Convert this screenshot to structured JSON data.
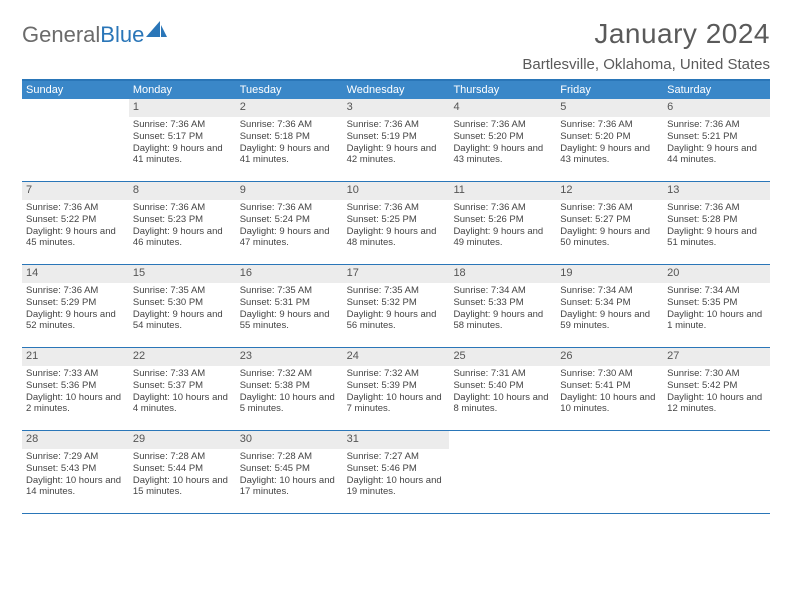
{
  "logo": {
    "part1": "General",
    "part2": "Blue"
  },
  "title": "January 2024",
  "location": "Bartlesville, Oklahoma, United States",
  "colors": {
    "header_bg": "#3a87c8",
    "border": "#2a76b8",
    "daynum_bg": "#ececec",
    "text": "#444444",
    "title_text": "#5a5a5a"
  },
  "day_names": [
    "Sunday",
    "Monday",
    "Tuesday",
    "Wednesday",
    "Thursday",
    "Friday",
    "Saturday"
  ],
  "weeks": [
    [
      {
        "day": "",
        "sunrise": "",
        "sunset": "",
        "daylight": ""
      },
      {
        "day": "1",
        "sunrise": "Sunrise: 7:36 AM",
        "sunset": "Sunset: 5:17 PM",
        "daylight": "Daylight: 9 hours and 41 minutes."
      },
      {
        "day": "2",
        "sunrise": "Sunrise: 7:36 AM",
        "sunset": "Sunset: 5:18 PM",
        "daylight": "Daylight: 9 hours and 41 minutes."
      },
      {
        "day": "3",
        "sunrise": "Sunrise: 7:36 AM",
        "sunset": "Sunset: 5:19 PM",
        "daylight": "Daylight: 9 hours and 42 minutes."
      },
      {
        "day": "4",
        "sunrise": "Sunrise: 7:36 AM",
        "sunset": "Sunset: 5:20 PM",
        "daylight": "Daylight: 9 hours and 43 minutes."
      },
      {
        "day": "5",
        "sunrise": "Sunrise: 7:36 AM",
        "sunset": "Sunset: 5:20 PM",
        "daylight": "Daylight: 9 hours and 43 minutes."
      },
      {
        "day": "6",
        "sunrise": "Sunrise: 7:36 AM",
        "sunset": "Sunset: 5:21 PM",
        "daylight": "Daylight: 9 hours and 44 minutes."
      }
    ],
    [
      {
        "day": "7",
        "sunrise": "Sunrise: 7:36 AM",
        "sunset": "Sunset: 5:22 PM",
        "daylight": "Daylight: 9 hours and 45 minutes."
      },
      {
        "day": "8",
        "sunrise": "Sunrise: 7:36 AM",
        "sunset": "Sunset: 5:23 PM",
        "daylight": "Daylight: 9 hours and 46 minutes."
      },
      {
        "day": "9",
        "sunrise": "Sunrise: 7:36 AM",
        "sunset": "Sunset: 5:24 PM",
        "daylight": "Daylight: 9 hours and 47 minutes."
      },
      {
        "day": "10",
        "sunrise": "Sunrise: 7:36 AM",
        "sunset": "Sunset: 5:25 PM",
        "daylight": "Daylight: 9 hours and 48 minutes."
      },
      {
        "day": "11",
        "sunrise": "Sunrise: 7:36 AM",
        "sunset": "Sunset: 5:26 PM",
        "daylight": "Daylight: 9 hours and 49 minutes."
      },
      {
        "day": "12",
        "sunrise": "Sunrise: 7:36 AM",
        "sunset": "Sunset: 5:27 PM",
        "daylight": "Daylight: 9 hours and 50 minutes."
      },
      {
        "day": "13",
        "sunrise": "Sunrise: 7:36 AM",
        "sunset": "Sunset: 5:28 PM",
        "daylight": "Daylight: 9 hours and 51 minutes."
      }
    ],
    [
      {
        "day": "14",
        "sunrise": "Sunrise: 7:36 AM",
        "sunset": "Sunset: 5:29 PM",
        "daylight": "Daylight: 9 hours and 52 minutes."
      },
      {
        "day": "15",
        "sunrise": "Sunrise: 7:35 AM",
        "sunset": "Sunset: 5:30 PM",
        "daylight": "Daylight: 9 hours and 54 minutes."
      },
      {
        "day": "16",
        "sunrise": "Sunrise: 7:35 AM",
        "sunset": "Sunset: 5:31 PM",
        "daylight": "Daylight: 9 hours and 55 minutes."
      },
      {
        "day": "17",
        "sunrise": "Sunrise: 7:35 AM",
        "sunset": "Sunset: 5:32 PM",
        "daylight": "Daylight: 9 hours and 56 minutes."
      },
      {
        "day": "18",
        "sunrise": "Sunrise: 7:34 AM",
        "sunset": "Sunset: 5:33 PM",
        "daylight": "Daylight: 9 hours and 58 minutes."
      },
      {
        "day": "19",
        "sunrise": "Sunrise: 7:34 AM",
        "sunset": "Sunset: 5:34 PM",
        "daylight": "Daylight: 9 hours and 59 minutes."
      },
      {
        "day": "20",
        "sunrise": "Sunrise: 7:34 AM",
        "sunset": "Sunset: 5:35 PM",
        "daylight": "Daylight: 10 hours and 1 minute."
      }
    ],
    [
      {
        "day": "21",
        "sunrise": "Sunrise: 7:33 AM",
        "sunset": "Sunset: 5:36 PM",
        "daylight": "Daylight: 10 hours and 2 minutes."
      },
      {
        "day": "22",
        "sunrise": "Sunrise: 7:33 AM",
        "sunset": "Sunset: 5:37 PM",
        "daylight": "Daylight: 10 hours and 4 minutes."
      },
      {
        "day": "23",
        "sunrise": "Sunrise: 7:32 AM",
        "sunset": "Sunset: 5:38 PM",
        "daylight": "Daylight: 10 hours and 5 minutes."
      },
      {
        "day": "24",
        "sunrise": "Sunrise: 7:32 AM",
        "sunset": "Sunset: 5:39 PM",
        "daylight": "Daylight: 10 hours and 7 minutes."
      },
      {
        "day": "25",
        "sunrise": "Sunrise: 7:31 AM",
        "sunset": "Sunset: 5:40 PM",
        "daylight": "Daylight: 10 hours and 8 minutes."
      },
      {
        "day": "26",
        "sunrise": "Sunrise: 7:30 AM",
        "sunset": "Sunset: 5:41 PM",
        "daylight": "Daylight: 10 hours and 10 minutes."
      },
      {
        "day": "27",
        "sunrise": "Sunrise: 7:30 AM",
        "sunset": "Sunset: 5:42 PM",
        "daylight": "Daylight: 10 hours and 12 minutes."
      }
    ],
    [
      {
        "day": "28",
        "sunrise": "Sunrise: 7:29 AM",
        "sunset": "Sunset: 5:43 PM",
        "daylight": "Daylight: 10 hours and 14 minutes."
      },
      {
        "day": "29",
        "sunrise": "Sunrise: 7:28 AM",
        "sunset": "Sunset: 5:44 PM",
        "daylight": "Daylight: 10 hours and 15 minutes."
      },
      {
        "day": "30",
        "sunrise": "Sunrise: 7:28 AM",
        "sunset": "Sunset: 5:45 PM",
        "daylight": "Daylight: 10 hours and 17 minutes."
      },
      {
        "day": "31",
        "sunrise": "Sunrise: 7:27 AM",
        "sunset": "Sunset: 5:46 PM",
        "daylight": "Daylight: 10 hours and 19 minutes."
      },
      {
        "day": "",
        "sunrise": "",
        "sunset": "",
        "daylight": ""
      },
      {
        "day": "",
        "sunrise": "",
        "sunset": "",
        "daylight": ""
      },
      {
        "day": "",
        "sunrise": "",
        "sunset": "",
        "daylight": ""
      }
    ]
  ]
}
